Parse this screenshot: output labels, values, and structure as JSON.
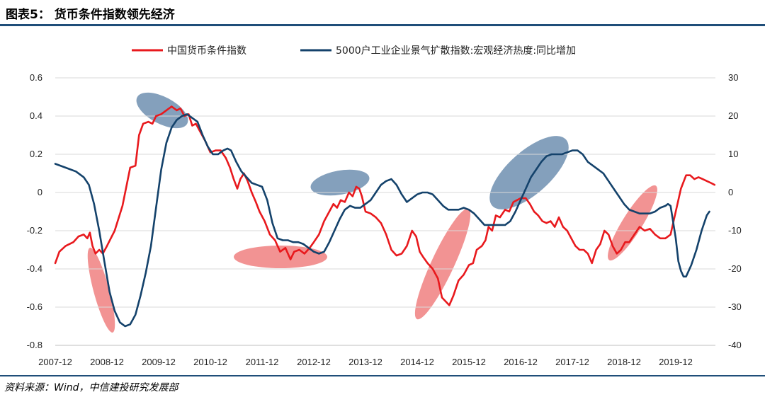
{
  "header": {
    "title": "图表5：  货币条件指数领先经济"
  },
  "footer": {
    "source": "资料来源：Wind，中信建投研究发展部"
  },
  "colors": {
    "red_series": "#e8191d",
    "blue_series": "#14426b",
    "rule": "#1f4e79",
    "ellipse_red": "#f08080",
    "ellipse_blue": "#6f8fb0"
  },
  "chart_data": {
    "type": "line",
    "title": "",
    "xlabel": "",
    "ylabel": "",
    "x_tick_labels": [
      "2007-12",
      "2008-12",
      "2009-12",
      "2010-12",
      "2011-12",
      "2012-12",
      "2013-12",
      "2014-12",
      "2015-12",
      "2016-12",
      "2017-12",
      "2018-12",
      "2019-12"
    ],
    "xlim": [
      0,
      13.3
    ],
    "ylim_left": [
      -0.8,
      0.6
    ],
    "ylim_right": [
      -40,
      30
    ],
    "y_left_ticks": [
      "0.6",
      "0.4",
      "0.2",
      "0",
      "-0.2",
      "-0.4",
      "-0.6",
      "-0.8"
    ],
    "y_right_ticks": [
      "30",
      "20",
      "10",
      "0",
      "-10",
      "-20",
      "-30",
      "-40"
    ],
    "legend_position": "top",
    "grid": "horizontal",
    "series": [
      {
        "name": "中国货币条件指数",
        "axis": "left",
        "color": "#e8191d",
        "points": [
          [
            0.0,
            -0.37
          ],
          [
            0.08,
            -0.31
          ],
          [
            0.2,
            -0.28
          ],
          [
            0.35,
            -0.26
          ],
          [
            0.45,
            -0.23
          ],
          [
            0.55,
            -0.22
          ],
          [
            0.62,
            -0.24
          ],
          [
            0.67,
            -0.21
          ],
          [
            0.72,
            -0.28
          ],
          [
            0.78,
            -0.32
          ],
          [
            0.85,
            -0.3
          ],
          [
            0.92,
            -0.32
          ],
          [
            1.0,
            -0.28
          ],
          [
            1.15,
            -0.2
          ],
          [
            1.3,
            -0.07
          ],
          [
            1.45,
            0.13
          ],
          [
            1.55,
            0.14
          ],
          [
            1.62,
            0.3
          ],
          [
            1.7,
            0.36
          ],
          [
            1.8,
            0.37
          ],
          [
            1.88,
            0.36
          ],
          [
            1.95,
            0.4
          ],
          [
            2.05,
            0.41
          ],
          [
            2.15,
            0.43
          ],
          [
            2.25,
            0.45
          ],
          [
            2.35,
            0.43
          ],
          [
            2.42,
            0.44
          ],
          [
            2.5,
            0.4
          ],
          [
            2.58,
            0.41
          ],
          [
            2.65,
            0.35
          ],
          [
            2.72,
            0.36
          ],
          [
            2.78,
            0.33
          ],
          [
            2.9,
            0.27
          ],
          [
            3.0,
            0.21
          ],
          [
            3.1,
            0.22
          ],
          [
            3.2,
            0.22
          ],
          [
            3.3,
            0.18
          ],
          [
            3.38,
            0.13
          ],
          [
            3.45,
            0.07
          ],
          [
            3.52,
            0.02
          ],
          [
            3.58,
            0.07
          ],
          [
            3.65,
            0.1
          ],
          [
            3.72,
            0.06
          ],
          [
            3.8,
            0.0
          ],
          [
            3.88,
            -0.05
          ],
          [
            3.95,
            -0.1
          ],
          [
            4.05,
            -0.15
          ],
          [
            4.15,
            -0.22
          ],
          [
            4.25,
            -0.25
          ],
          [
            4.35,
            -0.31
          ],
          [
            4.45,
            -0.29
          ],
          [
            4.55,
            -0.35
          ],
          [
            4.62,
            -0.31
          ],
          [
            4.72,
            -0.3
          ],
          [
            4.82,
            -0.32
          ],
          [
            4.92,
            -0.29
          ],
          [
            5.0,
            -0.26
          ],
          [
            5.1,
            -0.22
          ],
          [
            5.2,
            -0.15
          ],
          [
            5.3,
            -0.1
          ],
          [
            5.38,
            -0.06
          ],
          [
            5.45,
            -0.08
          ],
          [
            5.52,
            -0.04
          ],
          [
            5.6,
            -0.05
          ],
          [
            5.68,
            0.0
          ],
          [
            5.75,
            -0.02
          ],
          [
            5.82,
            0.03
          ],
          [
            5.88,
            0.02
          ],
          [
            5.93,
            -0.02
          ],
          [
            6.0,
            -0.1
          ],
          [
            6.1,
            -0.11
          ],
          [
            6.2,
            -0.13
          ],
          [
            6.3,
            -0.16
          ],
          [
            6.4,
            -0.22
          ],
          [
            6.5,
            -0.3
          ],
          [
            6.6,
            -0.33
          ],
          [
            6.7,
            -0.32
          ],
          [
            6.8,
            -0.28
          ],
          [
            6.9,
            -0.2
          ],
          [
            6.98,
            -0.23
          ],
          [
            7.05,
            -0.31
          ],
          [
            7.12,
            -0.34
          ],
          [
            7.2,
            -0.37
          ],
          [
            7.3,
            -0.4
          ],
          [
            7.4,
            -0.45
          ],
          [
            7.48,
            -0.55
          ],
          [
            7.55,
            -0.57
          ],
          [
            7.62,
            -0.59
          ],
          [
            7.7,
            -0.54
          ],
          [
            7.8,
            -0.46
          ],
          [
            7.9,
            -0.43
          ],
          [
            8.0,
            -0.38
          ],
          [
            8.08,
            -0.37
          ],
          [
            8.15,
            -0.3
          ],
          [
            8.25,
            -0.28
          ],
          [
            8.32,
            -0.25
          ],
          [
            8.38,
            -0.18
          ],
          [
            8.45,
            -0.2
          ],
          [
            8.52,
            -0.12
          ],
          [
            8.6,
            -0.13
          ],
          [
            8.7,
            -0.09
          ],
          [
            8.78,
            -0.1
          ],
          [
            8.86,
            -0.05
          ],
          [
            8.93,
            -0.04
          ],
          [
            9.0,
            -0.03
          ],
          [
            9.1,
            -0.03
          ],
          [
            9.18,
            -0.06
          ],
          [
            9.26,
            -0.1
          ],
          [
            9.34,
            -0.12
          ],
          [
            9.42,
            -0.15
          ],
          [
            9.5,
            -0.16
          ],
          [
            9.58,
            -0.15
          ],
          [
            9.66,
            -0.18
          ],
          [
            9.74,
            -0.13
          ],
          [
            9.82,
            -0.18
          ],
          [
            9.9,
            -0.2
          ],
          [
            9.98,
            -0.24
          ],
          [
            10.06,
            -0.28
          ],
          [
            10.14,
            -0.3
          ],
          [
            10.22,
            -0.3
          ],
          [
            10.3,
            -0.32
          ],
          [
            10.38,
            -0.37
          ],
          [
            10.46,
            -0.3
          ],
          [
            10.54,
            -0.27
          ],
          [
            10.62,
            -0.2
          ],
          [
            10.7,
            -0.22
          ],
          [
            10.78,
            -0.28
          ],
          [
            10.86,
            -0.32
          ],
          [
            10.94,
            -0.3
          ],
          [
            11.02,
            -0.26
          ],
          [
            11.1,
            -0.26
          ],
          [
            11.2,
            -0.22
          ],
          [
            11.3,
            -0.18
          ],
          [
            11.4,
            -0.2
          ],
          [
            11.5,
            -0.19
          ],
          [
            11.6,
            -0.22
          ],
          [
            11.7,
            -0.24
          ],
          [
            11.8,
            -0.24
          ],
          [
            11.9,
            -0.22
          ],
          [
            12.0,
            -0.1
          ],
          [
            12.1,
            0.02
          ],
          [
            12.2,
            0.09
          ],
          [
            12.28,
            0.09
          ],
          [
            12.36,
            0.07
          ],
          [
            12.44,
            0.08
          ],
          [
            12.52,
            0.07
          ],
          [
            12.6,
            0.06
          ],
          [
            12.68,
            0.05
          ],
          [
            12.75,
            0.04
          ]
        ]
      },
      {
        "name": "5000户工业企业景气扩散指数:宏观经济热度:同比增加",
        "axis": "right",
        "color": "#14426b",
        "points": [
          [
            0.0,
            7.5
          ],
          [
            0.2,
            6.5
          ],
          [
            0.4,
            5.5
          ],
          [
            0.55,
            4.0
          ],
          [
            0.65,
            2.0
          ],
          [
            0.75,
            -3.0
          ],
          [
            0.85,
            -10.0
          ],
          [
            0.95,
            -18.0
          ],
          [
            1.05,
            -26.0
          ],
          [
            1.15,
            -31.0
          ],
          [
            1.25,
            -34.0
          ],
          [
            1.35,
            -35.0
          ],
          [
            1.45,
            -34.5
          ],
          [
            1.55,
            -32.0
          ],
          [
            1.65,
            -27.0
          ],
          [
            1.75,
            -21.0
          ],
          [
            1.85,
            -14.0
          ],
          [
            1.95,
            -4.0
          ],
          [
            2.05,
            6.0
          ],
          [
            2.15,
            13.0
          ],
          [
            2.25,
            17.0
          ],
          [
            2.35,
            19.0
          ],
          [
            2.45,
            20.0
          ],
          [
            2.55,
            20.5
          ],
          [
            2.65,
            19.5
          ],
          [
            2.75,
            18.5
          ],
          [
            2.85,
            15.0
          ],
          [
            2.95,
            12.0
          ],
          [
            3.05,
            10.0
          ],
          [
            3.15,
            10.0
          ],
          [
            3.25,
            11.0
          ],
          [
            3.33,
            11.5
          ],
          [
            3.4,
            11.0
          ],
          [
            3.5,
            8.0
          ],
          [
            3.6,
            5.5
          ],
          [
            3.7,
            4.0
          ],
          [
            3.8,
            2.5
          ],
          [
            3.9,
            2.0
          ],
          [
            4.0,
            1.5
          ],
          [
            4.1,
            -2.0
          ],
          [
            4.2,
            -8.0
          ],
          [
            4.3,
            -12.0
          ],
          [
            4.4,
            -12.5
          ],
          [
            4.5,
            -12.5
          ],
          [
            4.6,
            -13.0
          ],
          [
            4.7,
            -13.0
          ],
          [
            4.8,
            -13.5
          ],
          [
            4.9,
            -14.5
          ],
          [
            5.0,
            -15.5
          ],
          [
            5.1,
            -16.0
          ],
          [
            5.2,
            -15.5
          ],
          [
            5.3,
            -13.0
          ],
          [
            5.4,
            -10.0
          ],
          [
            5.5,
            -7.0
          ],
          [
            5.6,
            -4.5
          ],
          [
            5.7,
            -3.5
          ],
          [
            5.8,
            -4.0
          ],
          [
            5.9,
            -4.0
          ],
          [
            6.0,
            -3.0
          ],
          [
            6.1,
            -2.0
          ],
          [
            6.2,
            0.0
          ],
          [
            6.3,
            2.0
          ],
          [
            6.4,
            3.0
          ],
          [
            6.5,
            3.5
          ],
          [
            6.6,
            2.0
          ],
          [
            6.7,
            -0.5
          ],
          [
            6.8,
            -2.5
          ],
          [
            6.9,
            -1.5
          ],
          [
            7.0,
            -0.5
          ],
          [
            7.1,
            0.0
          ],
          [
            7.2,
            0.0
          ],
          [
            7.3,
            -0.5
          ],
          [
            7.4,
            -2.0
          ],
          [
            7.5,
            -3.5
          ],
          [
            7.6,
            -4.5
          ],
          [
            7.7,
            -4.5
          ],
          [
            7.8,
            -4.5
          ],
          [
            7.9,
            -4.0
          ],
          [
            8.0,
            -4.5
          ],
          [
            8.1,
            -5.5
          ],
          [
            8.2,
            -7.0
          ],
          [
            8.3,
            -8.5
          ],
          [
            8.4,
            -8.5
          ],
          [
            8.5,
            -8.5
          ],
          [
            8.6,
            -8.5
          ],
          [
            8.7,
            -8.5
          ],
          [
            8.8,
            -7.5
          ],
          [
            8.9,
            -5.0
          ],
          [
            9.0,
            -2.0
          ],
          [
            9.1,
            1.0
          ],
          [
            9.2,
            4.0
          ],
          [
            9.3,
            6.0
          ],
          [
            9.4,
            8.0
          ],
          [
            9.5,
            9.5
          ],
          [
            9.6,
            10.0
          ],
          [
            9.7,
            10.0
          ],
          [
            9.8,
            10.0
          ],
          [
            9.9,
            10.5
          ],
          [
            10.0,
            11.0
          ],
          [
            10.1,
            11.0
          ],
          [
            10.2,
            10.0
          ],
          [
            10.3,
            8.0
          ],
          [
            10.4,
            7.0
          ],
          [
            10.5,
            6.0
          ],
          [
            10.6,
            5.0
          ],
          [
            10.7,
            3.0
          ],
          [
            10.8,
            1.0
          ],
          [
            10.9,
            -1.0
          ],
          [
            11.0,
            -3.0
          ],
          [
            11.1,
            -4.5
          ],
          [
            11.2,
            -5.0
          ],
          [
            11.3,
            -5.5
          ],
          [
            11.4,
            -5.5
          ],
          [
            11.5,
            -5.5
          ],
          [
            11.6,
            -5.0
          ],
          [
            11.7,
            -4.0
          ],
          [
            11.8,
            -3.5
          ],
          [
            11.85,
            -3.0
          ],
          [
            11.9,
            -3.5
          ],
          [
            12.0,
            -12.0
          ],
          [
            12.05,
            -18.0
          ],
          [
            12.1,
            -20.5
          ],
          [
            12.15,
            -22.0
          ],
          [
            12.2,
            -22.0
          ],
          [
            12.3,
            -19.0
          ],
          [
            12.4,
            -15.0
          ],
          [
            12.5,
            -10.0
          ],
          [
            12.6,
            -6.0
          ],
          [
            12.65,
            -5.0
          ]
        ]
      }
    ]
  }
}
